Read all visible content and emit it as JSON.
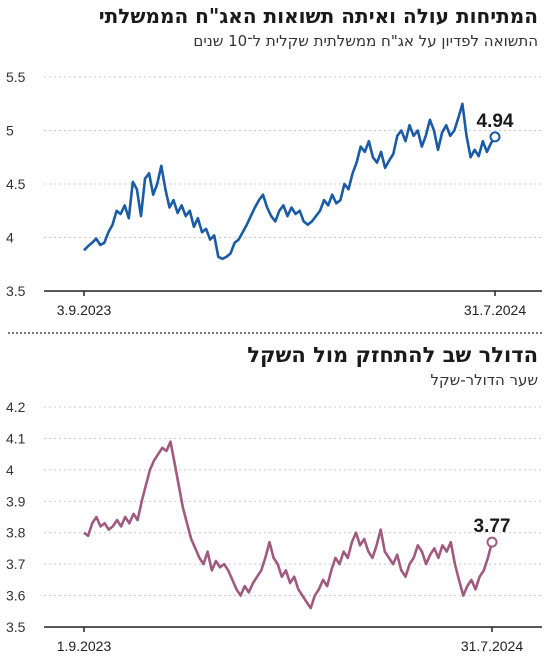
{
  "chart_data": [
    {
      "type": "line",
      "title": "המתיחות עולה ואיתה תשואות האג\"ח הממשלתי",
      "subtitle": "התשואה לפדיון על אג\"ח ממשלתית שקלית ל־10 שנים",
      "xlabel": "",
      "ylabel": "",
      "ylim": [
        3.5,
        5.5
      ],
      "yticks": [
        "3.5",
        "4",
        "4.5",
        "5",
        "5.5"
      ],
      "xtick_labels": [
        "3.9.2023",
        "31.7.2024"
      ],
      "last_value_label": "4.94",
      "grid": true,
      "line_color": "#1a5ba6",
      "series": [
        {
          "values": [
            3.88,
            3.92,
            3.95,
            3.99,
            3.93,
            3.95,
            4.05,
            4.12,
            4.25,
            4.22,
            4.3,
            4.18,
            4.52,
            4.45,
            4.2,
            4.55,
            4.6,
            4.4,
            4.5,
            4.67,
            4.45,
            4.28,
            4.35,
            4.23,
            4.3,
            4.2,
            4.25,
            4.1,
            4.18,
            4.05,
            4.08,
            3.98,
            4.02,
            3.82,
            3.8,
            3.82,
            3.85,
            3.95,
            3.98,
            4.05,
            4.12,
            4.2,
            4.28,
            4.35,
            4.4,
            4.28,
            4.2,
            4.15,
            4.25,
            4.3,
            4.2,
            4.28,
            4.22,
            4.25,
            4.15,
            4.12,
            4.15,
            4.2,
            4.25,
            4.35,
            4.3,
            4.4,
            4.32,
            4.35,
            4.5,
            4.45,
            4.6,
            4.7,
            4.85,
            4.8,
            4.9,
            4.75,
            4.7,
            4.8,
            4.65,
            4.72,
            4.78,
            4.95,
            5.0,
            4.9,
            5.05,
            4.95,
            5.0,
            4.85,
            4.95,
            5.1,
            5.0,
            4.82,
            4.98,
            5.05,
            4.95,
            5.0,
            5.12,
            5.25,
            4.95,
            4.75,
            4.82,
            4.76,
            4.9,
            4.8,
            4.88,
            4.94
          ]
        }
      ]
    },
    {
      "type": "line",
      "title": "הדולר שב להתחזק מול השקל",
      "subtitle": "שער הדולר-שקל",
      "xlabel": "",
      "ylabel": "",
      "ylim": [
        3.5,
        4.2
      ],
      "yticks": [
        "3.5",
        "3.6",
        "3.7",
        "3.8",
        "3.9",
        "4",
        "4.1",
        "4.2"
      ],
      "xtick_labels": [
        "1.9.2023",
        "31.7.2024"
      ],
      "last_value_label": "3.77",
      "grid": true,
      "line_color": "#a05a80",
      "series": [
        {
          "values": [
            3.8,
            3.79,
            3.83,
            3.85,
            3.82,
            3.83,
            3.81,
            3.82,
            3.84,
            3.82,
            3.85,
            3.83,
            3.86,
            3.84,
            3.9,
            3.95,
            4.0,
            4.03,
            4.05,
            4.07,
            4.06,
            4.09,
            4.02,
            3.95,
            3.88,
            3.83,
            3.78,
            3.75,
            3.72,
            3.7,
            3.74,
            3.68,
            3.71,
            3.69,
            3.7,
            3.68,
            3.65,
            3.62,
            3.6,
            3.63,
            3.61,
            3.64,
            3.66,
            3.68,
            3.72,
            3.77,
            3.72,
            3.7,
            3.66,
            3.68,
            3.64,
            3.66,
            3.62,
            3.6,
            3.58,
            3.56,
            3.6,
            3.62,
            3.65,
            3.63,
            3.68,
            3.72,
            3.7,
            3.74,
            3.72,
            3.77,
            3.8,
            3.76,
            3.78,
            3.74,
            3.72,
            3.76,
            3.81,
            3.74,
            3.72,
            3.7,
            3.73,
            3.68,
            3.66,
            3.7,
            3.72,
            3.76,
            3.74,
            3.7,
            3.73,
            3.75,
            3.72,
            3.76,
            3.74,
            3.77,
            3.7,
            3.65,
            3.6,
            3.63,
            3.65,
            3.62,
            3.66,
            3.68,
            3.72,
            3.77
          ]
        }
      ]
    }
  ]
}
